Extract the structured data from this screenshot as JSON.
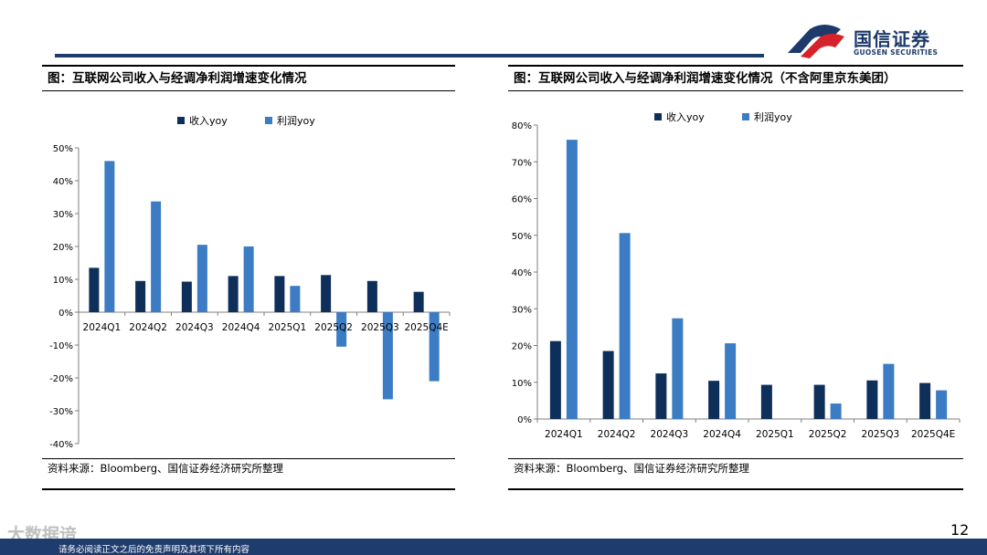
{
  "header": {
    "logo_cn": "国信证券",
    "logo_en": "GUOSEN SECURITIES"
  },
  "left": {
    "title": "图：互联网公司收入与经调净利润增速变化情况",
    "source": "资料来源：Bloomberg、国信证券经济研究所整理"
  },
  "right": {
    "title": "图：互联网公司收入与经调净利润增速变化情况（不含阿里京东美团）",
    "source": "资料来源：Bloomberg、国信证券经济研究所整理"
  },
  "chart_data": [
    {
      "type": "bar",
      "categories": [
        "2024Q1",
        "2024Q2",
        "2024Q3",
        "2024Q4",
        "2025Q1",
        "2025Q2",
        "2025Q3",
        "2025Q4E"
      ],
      "series": [
        {
          "name": "收入yoy",
          "color": "#0e2f5a",
          "values": [
            13.5,
            9.5,
            9.3,
            11.0,
            11.0,
            11.3,
            9.5,
            6.2
          ]
        },
        {
          "name": "利润yoy",
          "color": "#3b7cc4",
          "values": [
            46.0,
            33.7,
            20.5,
            20.0,
            8.0,
            -10.5,
            -26.5,
            -21.0
          ]
        }
      ],
      "ylim": [
        -40,
        50
      ],
      "yticks": [
        "-40%",
        "-30%",
        "-20%",
        "-10%",
        "0%",
        "10%",
        "20%",
        "30%",
        "40%",
        "50%"
      ],
      "legend_position": "top-left",
      "grid": false
    },
    {
      "type": "bar",
      "categories": [
        "2024Q1",
        "2024Q2",
        "2024Q3",
        "2024Q4",
        "2025Q1",
        "2025Q2",
        "2025Q3",
        "2025Q4E"
      ],
      "series": [
        {
          "name": "收入yoy",
          "color": "#0e2f5a",
          "values": [
            21.2,
            18.5,
            12.4,
            10.4,
            9.3,
            9.3,
            10.5,
            9.8
          ]
        },
        {
          "name": "利润yoy",
          "color": "#3b7cc4",
          "values": [
            76.0,
            50.6,
            27.4,
            20.6,
            0,
            4.2,
            15.0,
            7.8
          ]
        }
      ],
      "ylim": [
        0,
        80
      ],
      "yticks": [
        "0%",
        "10%",
        "20%",
        "30%",
        "40%",
        "50%",
        "60%",
        "70%",
        "80%"
      ],
      "legend_position": "top-left",
      "grid": false
    }
  ],
  "footer": {
    "disclaimer": "请务必阅读正文之后的免责声明及其项下所有内容",
    "watermark": "大数据谙",
    "page_number": "12"
  }
}
